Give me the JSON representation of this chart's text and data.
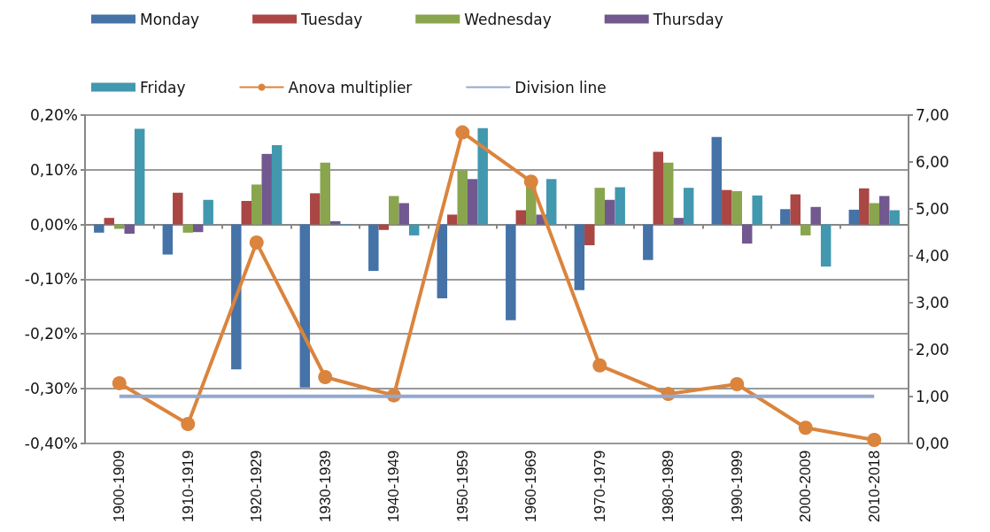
{
  "chart_data": {
    "type": "bar",
    "categories": [
      "1900-1909",
      "1910-1919",
      "1920-1929",
      "1930-1939",
      "1940-1949",
      "1950-1959",
      "1960-1969",
      "1970-1979",
      "1980-1989",
      "1990-1999",
      "2000-2009",
      "2010-2018"
    ],
    "series": [
      {
        "name": "Monday",
        "color": "#4572a7",
        "values": [
          -0.015,
          -0.055,
          -0.265,
          -0.298,
          -0.085,
          -0.135,
          -0.175,
          -0.12,
          -0.065,
          0.16,
          0.028,
          0.027
        ]
      },
      {
        "name": "Tuesday",
        "color": "#aa4643",
        "values": [
          0.012,
          0.058,
          0.043,
          0.057,
          -0.01,
          0.018,
          0.026,
          -0.038,
          0.133,
          0.063,
          0.055,
          0.066
        ]
      },
      {
        "name": "Wednesday",
        "color": "#89a54e",
        "values": [
          -0.008,
          -0.015,
          0.073,
          0.113,
          0.052,
          0.099,
          0.075,
          0.067,
          0.113,
          0.061,
          -0.02,
          0.039
        ]
      },
      {
        "name": "Thursday",
        "color": "#71588f",
        "values": [
          -0.017,
          -0.014,
          0.129,
          0.006,
          0.039,
          0.083,
          0.018,
          0.045,
          0.012,
          -0.035,
          0.032,
          0.052
        ]
      },
      {
        "name": "Friday",
        "color": "#4198af",
        "values": [
          0.175,
          0.045,
          0.145,
          0.001,
          -0.02,
          0.176,
          0.083,
          0.068,
          0.067,
          0.053,
          -0.077,
          0.026
        ]
      },
      {
        "name": "Anova multiplier",
        "type": "line",
        "axis": "y2",
        "marker": "circle",
        "color": "#db843d",
        "values": [
          1.28,
          0.41,
          4.28,
          1.41,
          1.02,
          6.63,
          5.58,
          1.66,
          1.05,
          1.26,
          0.33,
          0.07
        ]
      },
      {
        "name": "Division line",
        "type": "line",
        "axis": "y2",
        "marker": "none",
        "color": "#93a9cf",
        "values": [
          1,
          1,
          1,
          1,
          1,
          1,
          1,
          1,
          1,
          1,
          1,
          1
        ]
      }
    ],
    "ylim": [
      -0.4,
      0.2
    ],
    "yticks": [
      {
        "value": -0.4,
        "label": "-0,40%"
      },
      {
        "value": -0.3,
        "label": "-0,30%"
      },
      {
        "value": -0.2,
        "label": "-0,20%"
      },
      {
        "value": -0.1,
        "label": "-0,10%"
      },
      {
        "value": 0,
        "label": "0,00%"
      },
      {
        "value": 0.1,
        "label": "0,10%"
      },
      {
        "value": 0.2,
        "label": "0,20%"
      }
    ],
    "y2lim": [
      0,
      7
    ],
    "y2ticks": [
      {
        "value": 0,
        "label": "0,00"
      },
      {
        "value": 1,
        "label": "1,00"
      },
      {
        "value": 2,
        "label": "2,00"
      },
      {
        "value": 3,
        "label": "3,00"
      },
      {
        "value": 4,
        "label": "4,00"
      },
      {
        "value": 5,
        "label": "5,00"
      },
      {
        "value": 6,
        "label": "6,00"
      },
      {
        "value": 7,
        "label": "7,00"
      }
    ],
    "grid": "y",
    "legend": "top"
  }
}
